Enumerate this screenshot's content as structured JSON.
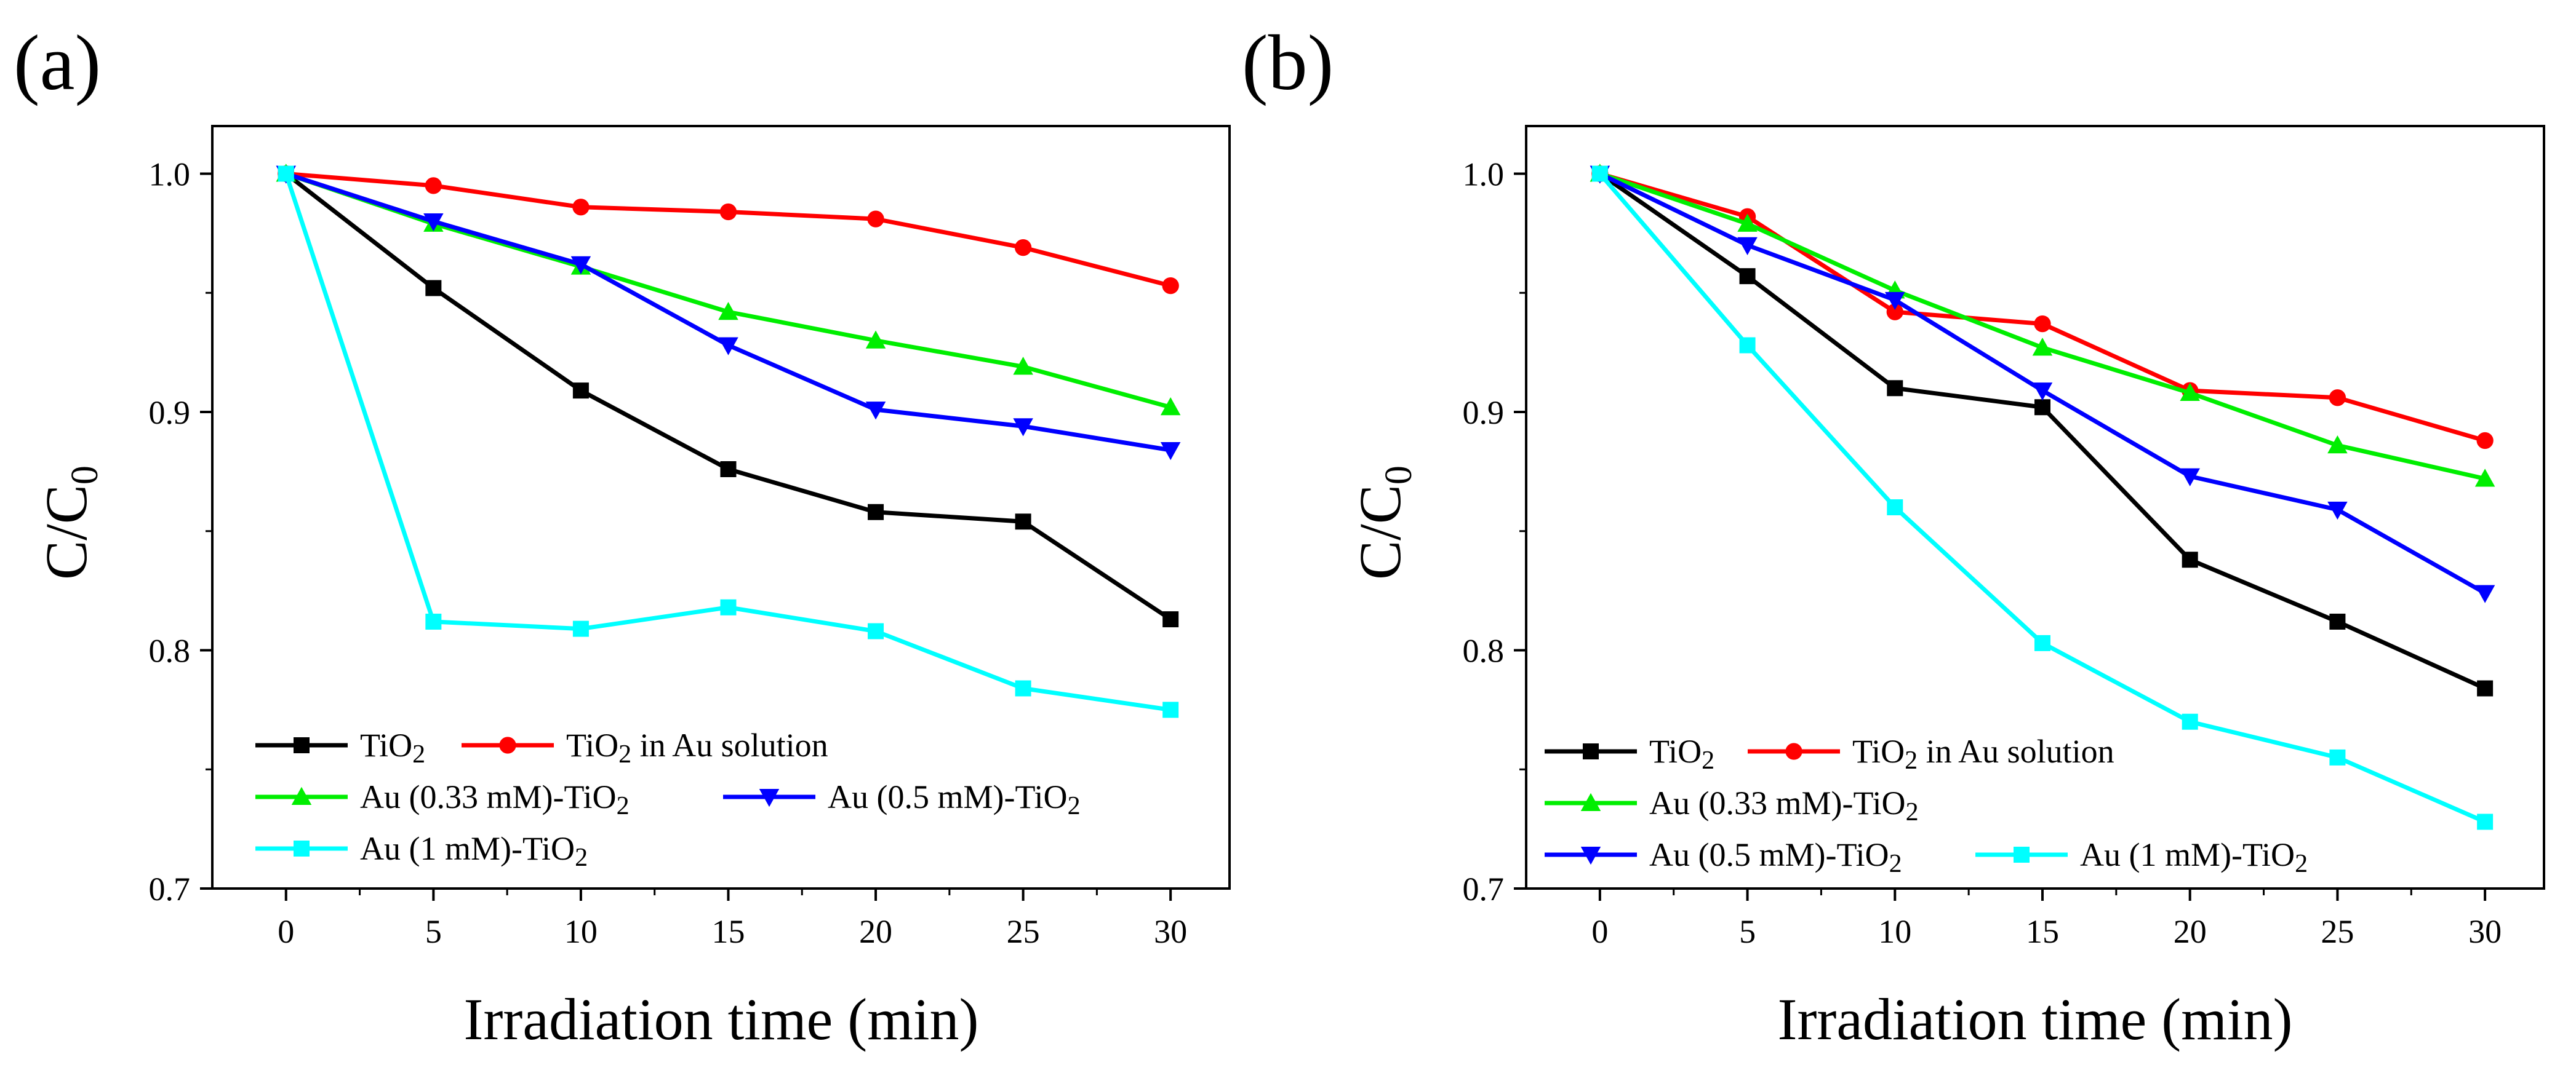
{
  "figure": {
    "panels": [
      "(a)",
      "(b)"
    ]
  },
  "chart_data": [
    {
      "type": "line",
      "panel_label": "(a)",
      "xlabel": "Irradiation time (min)",
      "ylabel": "C/C",
      "ylabel_subscript": "0",
      "x": [
        0,
        5,
        10,
        15,
        20,
        25,
        30
      ],
      "xticks": [
        "0",
        "5",
        "10",
        "15",
        "20",
        "25",
        "30"
      ],
      "yticks": [
        "0.7",
        "0.8",
        "0.9",
        "1.0"
      ],
      "xlim": [
        -2.5,
        32
      ],
      "ylim": [
        0.7,
        1.02
      ],
      "legend_position": "bottom-left",
      "series": [
        {
          "name": "TiO2",
          "label_main": "TiO",
          "label_sub": "2",
          "label_tail": "",
          "color": "#000000",
          "marker": "square",
          "values": [
            1.0,
            0.952,
            0.909,
            0.876,
            0.858,
            0.854,
            0.813
          ]
        },
        {
          "name": "TiO2 in Au solution",
          "label_main": "TiO",
          "label_sub": "2",
          "label_tail": " in Au solution",
          "color": "#ff0000",
          "marker": "circle",
          "values": [
            1.0,
            0.995,
            0.986,
            0.984,
            0.981,
            0.969,
            0.953
          ]
        },
        {
          "name": "Au (0.33 mM)-TiO2",
          "label_main": "Au (0.33 mM)-TiO",
          "label_sub": "2",
          "label_tail": "",
          "color": "#00ee00",
          "marker": "triangle-up",
          "values": [
            1.0,
            0.979,
            0.961,
            0.942,
            0.93,
            0.919,
            0.902
          ]
        },
        {
          "name": "Au (0.5 mM)-TiO2",
          "label_main": "Au (0.5 mM)-TiO",
          "label_sub": "2",
          "label_tail": "",
          "color": "#0000ff",
          "marker": "triangle-down",
          "values": [
            1.0,
            0.98,
            0.962,
            0.928,
            0.901,
            0.894,
            0.884
          ]
        },
        {
          "name": "Au (1 mM)-TiO2",
          "label_main": "Au (1 mM)-TiO",
          "label_sub": "2",
          "label_tail": "",
          "color": "#00ffff",
          "marker": "square",
          "values": [
            1.0,
            0.812,
            0.809,
            0.818,
            0.808,
            0.784,
            0.775
          ]
        }
      ]
    },
    {
      "type": "line",
      "panel_label": "(b)",
      "xlabel": "Irradiation time (min)",
      "ylabel": "C/C",
      "ylabel_subscript": "0",
      "x": [
        0,
        5,
        10,
        15,
        20,
        25,
        30
      ],
      "xticks": [
        "0",
        "5",
        "10",
        "15",
        "20",
        "25",
        "30"
      ],
      "yticks": [
        "0.7",
        "0.8",
        "0.9",
        "1.0"
      ],
      "xlim": [
        -2.5,
        32
      ],
      "ylim": [
        0.7,
        1.02
      ],
      "legend_position": "bottom-left",
      "series": [
        {
          "name": "TiO2",
          "label_main": "TiO",
          "label_sub": "2",
          "label_tail": "",
          "color": "#000000",
          "marker": "square",
          "values": [
            1.0,
            0.957,
            0.91,
            0.902,
            0.838,
            0.812,
            0.784
          ]
        },
        {
          "name": "TiO2 in Au solution",
          "label_main": "TiO",
          "label_sub": "2",
          "label_tail": " in Au solution",
          "color": "#ff0000",
          "marker": "circle",
          "values": [
            1.0,
            0.982,
            0.942,
            0.937,
            0.909,
            0.906,
            0.888
          ]
        },
        {
          "name": "Au (0.33 mM)-TiO2",
          "label_main": "Au (0.33 mM)-TiO",
          "label_sub": "2",
          "label_tail": "",
          "color": "#00ee00",
          "marker": "triangle-up",
          "values": [
            1.0,
            0.979,
            0.951,
            0.927,
            0.908,
            0.886,
            0.872
          ]
        },
        {
          "name": "Au (0.5 mM)-TiO2",
          "label_main": "Au (0.5 mM)-TiO",
          "label_sub": "2",
          "label_tail": "",
          "color": "#0000ff",
          "marker": "triangle-down",
          "values": [
            1.0,
            0.97,
            0.947,
            0.909,
            0.873,
            0.859,
            0.824
          ]
        },
        {
          "name": "Au (1 mM)-TiO2",
          "label_main": "Au (1 mM)-TiO",
          "label_sub": "2",
          "label_tail": "",
          "color": "#00ffff",
          "marker": "square",
          "values": [
            1.0,
            0.928,
            0.86,
            0.803,
            0.77,
            0.755,
            0.728
          ]
        }
      ]
    }
  ]
}
